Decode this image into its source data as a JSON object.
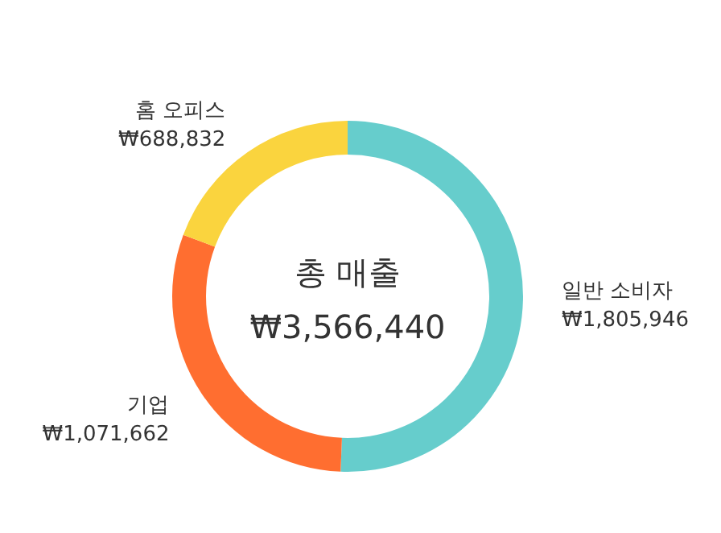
{
  "chart_data": {
    "type": "donut",
    "title": "총 매출",
    "annotations": [
      "₩3,566,440"
    ],
    "categories": [
      "일반 소비자",
      "기업",
      "홈 오피스"
    ],
    "values": [
      1805946,
      1071662,
      688832
    ],
    "colors": [
      "#66cdcc",
      "#ff6e30",
      "#fad43e"
    ],
    "value_labels": [
      "₩1,805,946",
      "₩1,071,662",
      "₩688,832"
    ]
  }
}
